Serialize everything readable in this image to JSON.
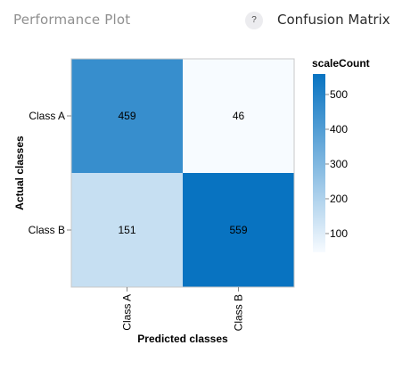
{
  "header": {
    "title": "Performance Plot",
    "help_label": "?",
    "tab_label": "Confusion Matrix"
  },
  "chart_data": {
    "type": "heatmap",
    "x_categories": [
      "Class A",
      "Class B"
    ],
    "y_categories": [
      "Class A",
      "Class B"
    ],
    "values": [
      [
        459,
        46
      ],
      [
        151,
        559
      ]
    ],
    "xlabel": "Predicted classes",
    "ylabel": "Actual classes",
    "legend_title": "scaleCount",
    "legend_ticks": [
      100,
      200,
      300,
      400,
      500
    ],
    "color_domain": [
      46,
      559
    ],
    "color_range": [
      "#f7fbff",
      "#0873c1"
    ]
  }
}
